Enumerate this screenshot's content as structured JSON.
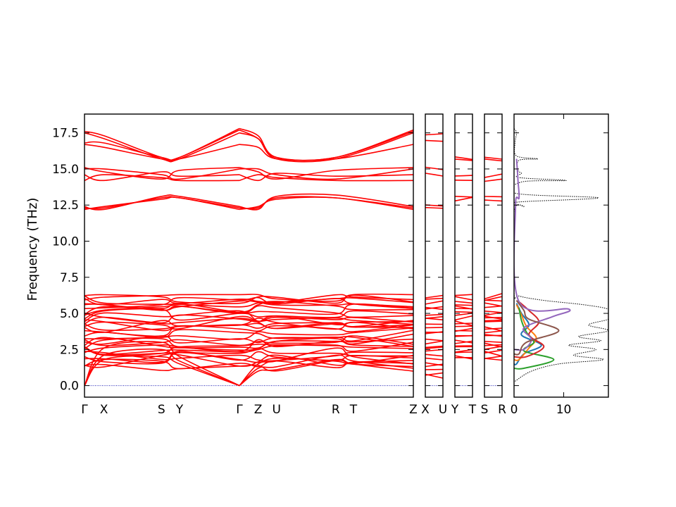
{
  "chart_data": {
    "type": "line",
    "ylabel": "Frequency (THz)",
    "ylim": [
      -0.8,
      18.8
    ],
    "y_ticks": [
      0.0,
      2.5,
      5.0,
      7.5,
      10.0,
      12.5,
      15.0,
      17.5
    ],
    "y_tick_labels": [
      "0.0",
      "2.5",
      "5.0",
      "7.5",
      "10.0",
      "12.5",
      "15.0",
      "17.5"
    ],
    "band_color": "#ff0000",
    "zero_line_color": "#1f1fb4",
    "panels": [
      {
        "kind": "band",
        "labels": [
          "Γ",
          "X",
          "S",
          "Y",
          "Γ",
          "Z",
          "U",
          "R",
          "T",
          "Z"
        ],
        "path_fractions": [
          0,
          0.059,
          0.234,
          0.289,
          0.471,
          0.528,
          0.584,
          0.764,
          0.818,
          1.0
        ]
      },
      {
        "kind": "band",
        "labels": [
          "X",
          "U"
        ],
        "path_fractions": [
          0,
          1
        ]
      },
      {
        "kind": "band",
        "labels": [
          "Y",
          "T"
        ],
        "path_fractions": [
          0,
          1
        ]
      },
      {
        "kind": "band",
        "labels": [
          "S",
          "R"
        ],
        "path_fractions": [
          0,
          1
        ]
      },
      {
        "kind": "dos",
        "xlim": [
          0,
          19
        ],
        "x_ticks": [
          0,
          10
        ],
        "x_tick_labels": [
          "0",
          "10"
        ]
      }
    ],
    "high_bands": [
      {
        "name": "b1",
        "values": [
          12.3,
          12.3,
          13.0,
          13.0,
          12.3,
          12.3,
          13.0,
          13.0,
          12.3
        ]
      },
      {
        "name": "b2",
        "values": [
          12.4,
          12.2,
          13.1,
          13.1,
          12.4,
          12.2,
          13.1,
          13.2,
          12.4
        ]
      },
      {
        "name": "b3",
        "values": [
          12.2,
          12.4,
          12.9,
          13.0,
          12.2,
          12.4,
          12.9,
          13.0,
          12.2
        ]
      },
      {
        "name": "b4",
        "values": [
          14.2,
          14.6,
          14.4,
          14.2,
          14.2,
          14.6,
          14.4,
          14.2,
          14.2
        ]
      },
      {
        "name": "b5",
        "values": [
          14.6,
          14.2,
          14.8,
          14.5,
          14.6,
          14.2,
          14.7,
          14.5,
          14.6
        ]
      },
      {
        "name": "b6",
        "values": [
          15.1,
          14.8,
          14.3,
          14.9,
          15.1,
          14.8,
          14.3,
          14.9,
          15.1
        ]
      },
      {
        "name": "b7",
        "values": [
          15.0,
          15.0,
          14.6,
          14.3,
          15.0,
          15.0,
          14.6,
          14.3,
          15.0
        ]
      },
      {
        "name": "b8",
        "values": [
          16.7,
          16.5,
          15.7,
          15.7,
          16.7,
          16.5,
          15.7,
          15.7,
          16.7
        ]
      },
      {
        "name": "b9",
        "values": [
          17.5,
          17.1,
          15.7,
          15.7,
          17.5,
          17.1,
          15.7,
          15.7,
          17.5
        ]
      },
      {
        "name": "b10",
        "values": [
          16.8,
          16.8,
          15.8,
          15.8,
          17.7,
          17.1,
          15.8,
          15.8,
          17.7
        ]
      },
      {
        "name": "b11",
        "values": [
          17.6,
          17.3,
          15.8,
          15.8,
          17.8,
          17.3,
          15.8,
          15.8,
          17.6
        ]
      }
    ],
    "acoustic_ends": [
      [
        2.0,
        1.8,
        1.5,
        1.0,
        0.7
      ],
      [
        2.5,
        2.1,
        1.7,
        1.2,
        0.9
      ],
      [
        3.0,
        2.6,
        2.0,
        1.5,
        1.3
      ]
    ],
    "low_band_count": 34,
    "low_band_range": [
      0.5,
      6.3
    ],
    "dos_total": [
      {
        "f": 0.3,
        "d": 0.2
      },
      {
        "f": 1.0,
        "d": 3.5
      },
      {
        "f": 1.5,
        "d": 9.0
      },
      {
        "f": 1.8,
        "d": 18.0
      },
      {
        "f": 2.1,
        "d": 12.0
      },
      {
        "f": 2.5,
        "d": 16.5
      },
      {
        "f": 2.8,
        "d": 11.0
      },
      {
        "f": 3.1,
        "d": 17.5
      },
      {
        "f": 3.4,
        "d": 13.0
      },
      {
        "f": 3.8,
        "d": 19.0
      },
      {
        "f": 4.2,
        "d": 15.0
      },
      {
        "f": 4.6,
        "d": 19.0
      },
      {
        "f": 5.0,
        "d": 19.0
      },
      {
        "f": 5.3,
        "d": 19.0
      },
      {
        "f": 5.6,
        "d": 14.0
      },
      {
        "f": 5.9,
        "d": 6.0
      },
      {
        "f": 6.2,
        "d": 1.0
      },
      {
        "f": 6.5,
        "d": 0.0
      },
      {
        "f": 12.0,
        "d": 0.0
      },
      {
        "f": 12.4,
        "d": 2.0
      },
      {
        "f": 12.7,
        "d": 0.5
      },
      {
        "f": 13.0,
        "d": 17.0
      },
      {
        "f": 13.3,
        "d": 0.5
      },
      {
        "f": 14.1,
        "d": 1.5
      },
      {
        "f": 14.2,
        "d": 10.5
      },
      {
        "f": 14.4,
        "d": 1.0
      },
      {
        "f": 14.7,
        "d": 1.5
      },
      {
        "f": 14.9,
        "d": 0.8
      },
      {
        "f": 15.6,
        "d": 1.0
      },
      {
        "f": 15.7,
        "d": 4.8
      },
      {
        "f": 15.9,
        "d": 0.5
      },
      {
        "f": 16.8,
        "d": 0.2
      },
      {
        "f": 17.5,
        "d": 0.5
      },
      {
        "f": 17.8,
        "d": 0.0
      }
    ],
    "dos_partial": [
      {
        "name": "p1",
        "color": "#1f77b4",
        "points": [
          {
            "f": 1.5,
            "d": 0.5
          },
          {
            "f": 2.2,
            "d": 2.0
          },
          {
            "f": 2.8,
            "d": 5.5
          },
          {
            "f": 3.5,
            "d": 1.5
          },
          {
            "f": 4.2,
            "d": 3.0
          },
          {
            "f": 5.0,
            "d": 1.5
          },
          {
            "f": 5.7,
            "d": 0.5
          }
        ]
      },
      {
        "name": "p2",
        "color": "#ff7f0e",
        "points": [
          {
            "f": 1.8,
            "d": 1.0
          },
          {
            "f": 2.6,
            "d": 3.0
          },
          {
            "f": 3.3,
            "d": 4.5
          },
          {
            "f": 4.1,
            "d": 2.5
          },
          {
            "f": 4.9,
            "d": 1.5
          },
          {
            "f": 5.6,
            "d": 0.5
          }
        ]
      },
      {
        "name": "p3",
        "color": "#2ca02c",
        "points": [
          {
            "f": 1.2,
            "d": 2.0
          },
          {
            "f": 1.8,
            "d": 8.0
          },
          {
            "f": 2.4,
            "d": 2.0
          },
          {
            "f": 3.0,
            "d": 4.0
          },
          {
            "f": 3.7,
            "d": 2.5
          },
          {
            "f": 4.5,
            "d": 1.5
          },
          {
            "f": 5.4,
            "d": 1.0
          }
        ]
      },
      {
        "name": "p4",
        "color": "#d62728",
        "points": [
          {
            "f": 2.0,
            "d": 2.5
          },
          {
            "f": 2.7,
            "d": 6.0
          },
          {
            "f": 3.5,
            "d": 3.0
          },
          {
            "f": 4.4,
            "d": 5.0
          },
          {
            "f": 5.2,
            "d": 3.0
          },
          {
            "f": 5.8,
            "d": 1.0
          }
        ]
      },
      {
        "name": "p5",
        "color": "#9467bd",
        "points": [
          {
            "f": 2.5,
            "d": 2.0
          },
          {
            "f": 3.2,
            "d": 3.5
          },
          {
            "f": 4.0,
            "d": 2.0
          },
          {
            "f": 4.8,
            "d": 8.0
          },
          {
            "f": 5.3,
            "d": 11.0
          },
          {
            "f": 5.8,
            "d": 1.0
          },
          {
            "f": 12.4,
            "d": 0.3
          },
          {
            "f": 13.0,
            "d": 1.0
          },
          {
            "f": 14.2,
            "d": 0.8
          },
          {
            "f": 15.7,
            "d": 0.5
          }
        ]
      },
      {
        "name": "p6",
        "color": "#8c564b",
        "points": [
          {
            "f": 2.2,
            "d": 1.0
          },
          {
            "f": 3.0,
            "d": 2.5
          },
          {
            "f": 3.8,
            "d": 9.0
          },
          {
            "f": 4.6,
            "d": 3.0
          },
          {
            "f": 5.2,
            "d": 2.0
          },
          {
            "f": 5.9,
            "d": 0.5
          }
        ]
      }
    ]
  }
}
